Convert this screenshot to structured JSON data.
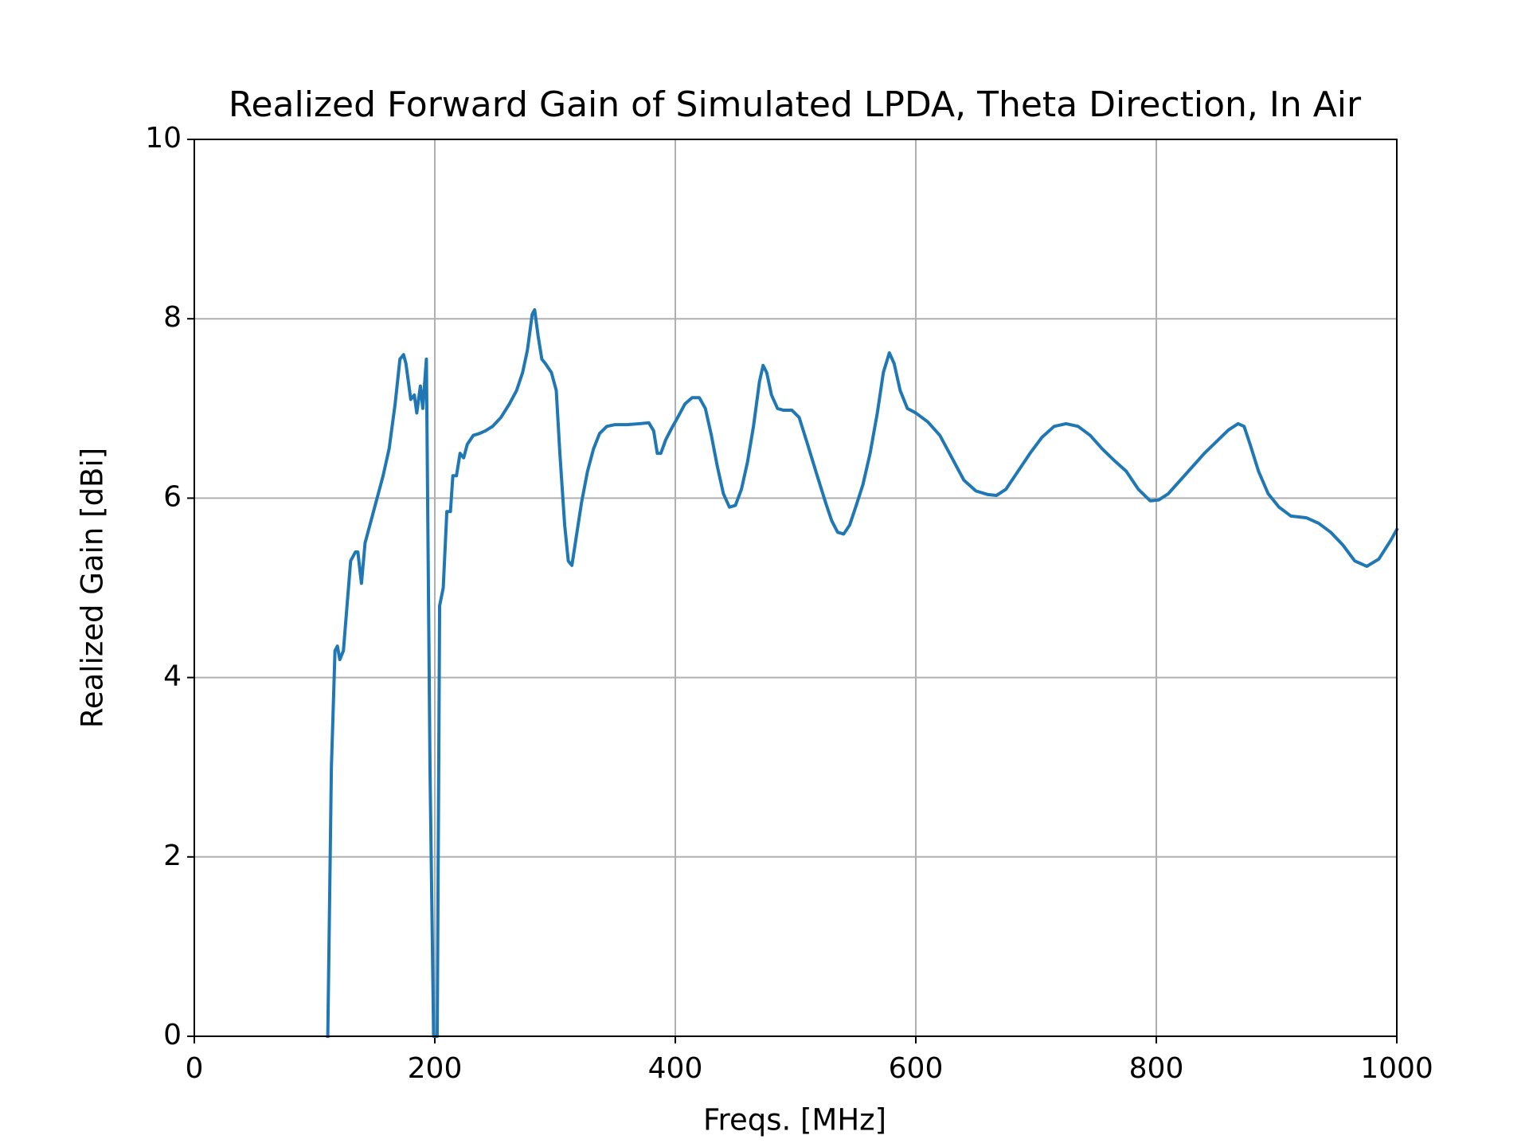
{
  "chart_data": {
    "type": "line",
    "title": "Realized Forward Gain of Simulated LPDA, Theta Direction, In Air",
    "x_label": "Freqs. [MHz]",
    "y_label": "Realized Gain [dBi]",
    "color": "#1f77b4",
    "grid": true,
    "xlim": [
      0,
      1000
    ],
    "xticks": [
      0,
      200,
      400,
      600,
      800,
      1000
    ],
    "ylim": [
      0,
      10
    ],
    "yticks": [
      0,
      2,
      4,
      6,
      8,
      10
    ],
    "x": [
      111,
      114,
      117,
      119,
      121,
      124,
      127,
      130,
      134,
      136,
      139,
      142,
      147,
      152,
      157,
      162,
      167,
      171,
      174,
      176,
      180,
      183,
      185,
      188,
      190,
      193,
      196,
      199,
      202,
      204,
      207,
      210,
      213,
      215,
      218,
      221,
      224,
      227,
      232,
      237,
      242,
      248,
      255,
      262,
      268,
      273,
      277,
      281,
      283,
      286,
      289,
      292,
      297,
      301,
      304,
      308,
      311,
      314,
      318,
      322,
      327,
      332,
      337,
      343,
      350,
      360,
      370,
      378,
      382,
      385,
      388,
      392,
      397,
      402,
      408,
      414,
      420,
      425,
      430,
      435,
      440,
      445,
      450,
      455,
      460,
      465,
      470,
      473,
      476,
      480,
      485,
      490,
      497,
      503,
      510,
      518,
      525,
      530,
      535,
      540,
      545,
      550,
      556,
      562,
      568,
      573,
      578,
      582,
      587,
      593,
      600,
      610,
      620,
      630,
      640,
      650,
      660,
      667,
      675,
      685,
      695,
      705,
      715,
      725,
      735,
      745,
      755,
      765,
      775,
      785,
      795,
      802,
      810,
      820,
      830,
      840,
      850,
      860,
      868,
      873,
      878,
      885,
      893,
      902,
      912,
      925,
      935,
      945,
      955,
      965,
      975,
      985,
      995,
      1000
    ],
    "values": [
      0,
      3.0,
      4.3,
      4.35,
      4.2,
      4.3,
      4.8,
      5.3,
      5.4,
      5.4,
      5.05,
      5.5,
      5.75,
      6.0,
      6.25,
      6.55,
      7.05,
      7.55,
      7.6,
      7.5,
      7.1,
      7.15,
      6.95,
      7.25,
      7.0,
      7.55,
      3.0,
      0,
      0,
      4.8,
      5.0,
      5.85,
      5.85,
      6.25,
      6.25,
      6.5,
      6.45,
      6.6,
      6.7,
      6.72,
      6.75,
      6.8,
      6.9,
      7.05,
      7.2,
      7.4,
      7.65,
      8.05,
      8.1,
      7.8,
      7.55,
      7.5,
      7.4,
      7.2,
      6.5,
      5.7,
      5.3,
      5.25,
      5.6,
      5.95,
      6.3,
      6.55,
      6.72,
      6.8,
      6.82,
      6.82,
      6.83,
      6.84,
      6.75,
      6.5,
      6.5,
      6.65,
      6.78,
      6.9,
      7.05,
      7.12,
      7.12,
      7.0,
      6.7,
      6.35,
      6.05,
      5.9,
      5.92,
      6.1,
      6.4,
      6.8,
      7.3,
      7.48,
      7.4,
      7.15,
      7.0,
      6.98,
      6.98,
      6.9,
      6.6,
      6.25,
      5.95,
      5.75,
      5.62,
      5.6,
      5.7,
      5.9,
      6.15,
      6.5,
      6.95,
      7.4,
      7.62,
      7.5,
      7.2,
      7.0,
      6.95,
      6.85,
      6.7,
      6.45,
      6.2,
      6.08,
      6.04,
      6.03,
      6.1,
      6.3,
      6.5,
      6.68,
      6.8,
      6.83,
      6.8,
      6.7,
      6.55,
      6.42,
      6.3,
      6.1,
      5.97,
      5.98,
      6.05,
      6.2,
      6.35,
      6.5,
      6.63,
      6.76,
      6.83,
      6.8,
      6.6,
      6.3,
      6.05,
      5.9,
      5.8,
      5.78,
      5.72,
      5.62,
      5.48,
      5.3,
      5.24,
      5.32,
      5.53,
      5.65
    ]
  }
}
